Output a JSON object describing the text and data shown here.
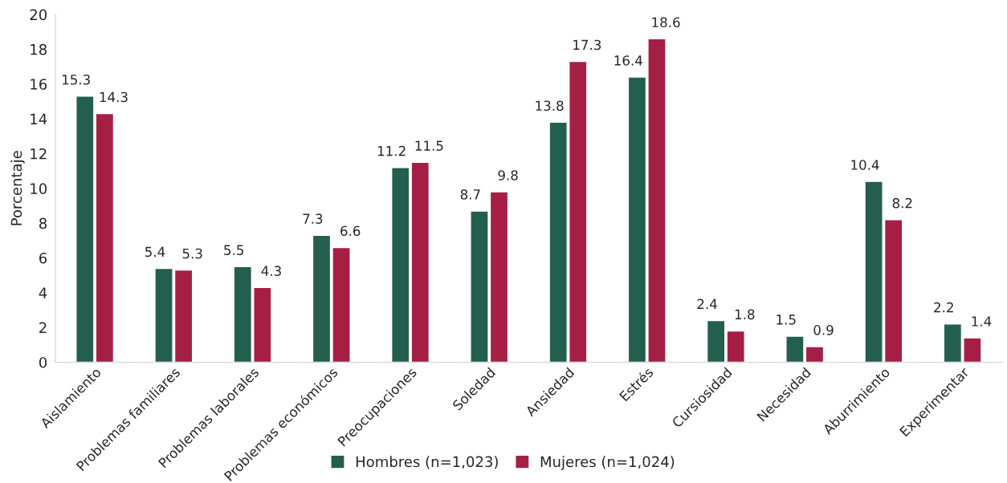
{
  "chart_data": {
    "type": "bar",
    "ylabel": "Porcentaje",
    "categories": [
      "Aislamiento",
      "Problemas familiares",
      "Problemas laborales",
      "Problemas económicos",
      "Preocupaciones",
      "Soledad",
      "Ansiedad",
      "Estrés",
      "Cursiosidad",
      "Necesidad",
      "Aburrimiento",
      "Experimentar"
    ],
    "series": [
      {
        "name": "Hombres (n=1,023)",
        "color": "#245e4f",
        "values": [
          15.3,
          5.4,
          5.5,
          7.3,
          11.2,
          8.7,
          13.8,
          16.4,
          2.4,
          1.5,
          10.4,
          2.2
        ]
      },
      {
        "name": "Mujeres (n=1,024)",
        "color": "#a51f45",
        "values": [
          14.3,
          5.3,
          4.3,
          6.6,
          11.5,
          9.8,
          17.3,
          18.6,
          1.8,
          0.9,
          8.2,
          1.4
        ]
      }
    ],
    "ylim": [
      0,
      20
    ],
    "yticks": [
      0,
      2,
      4,
      6,
      8,
      10,
      12,
      14,
      16,
      18,
      20
    ],
    "data_labels": true,
    "grid": false,
    "legend": "bottom"
  }
}
